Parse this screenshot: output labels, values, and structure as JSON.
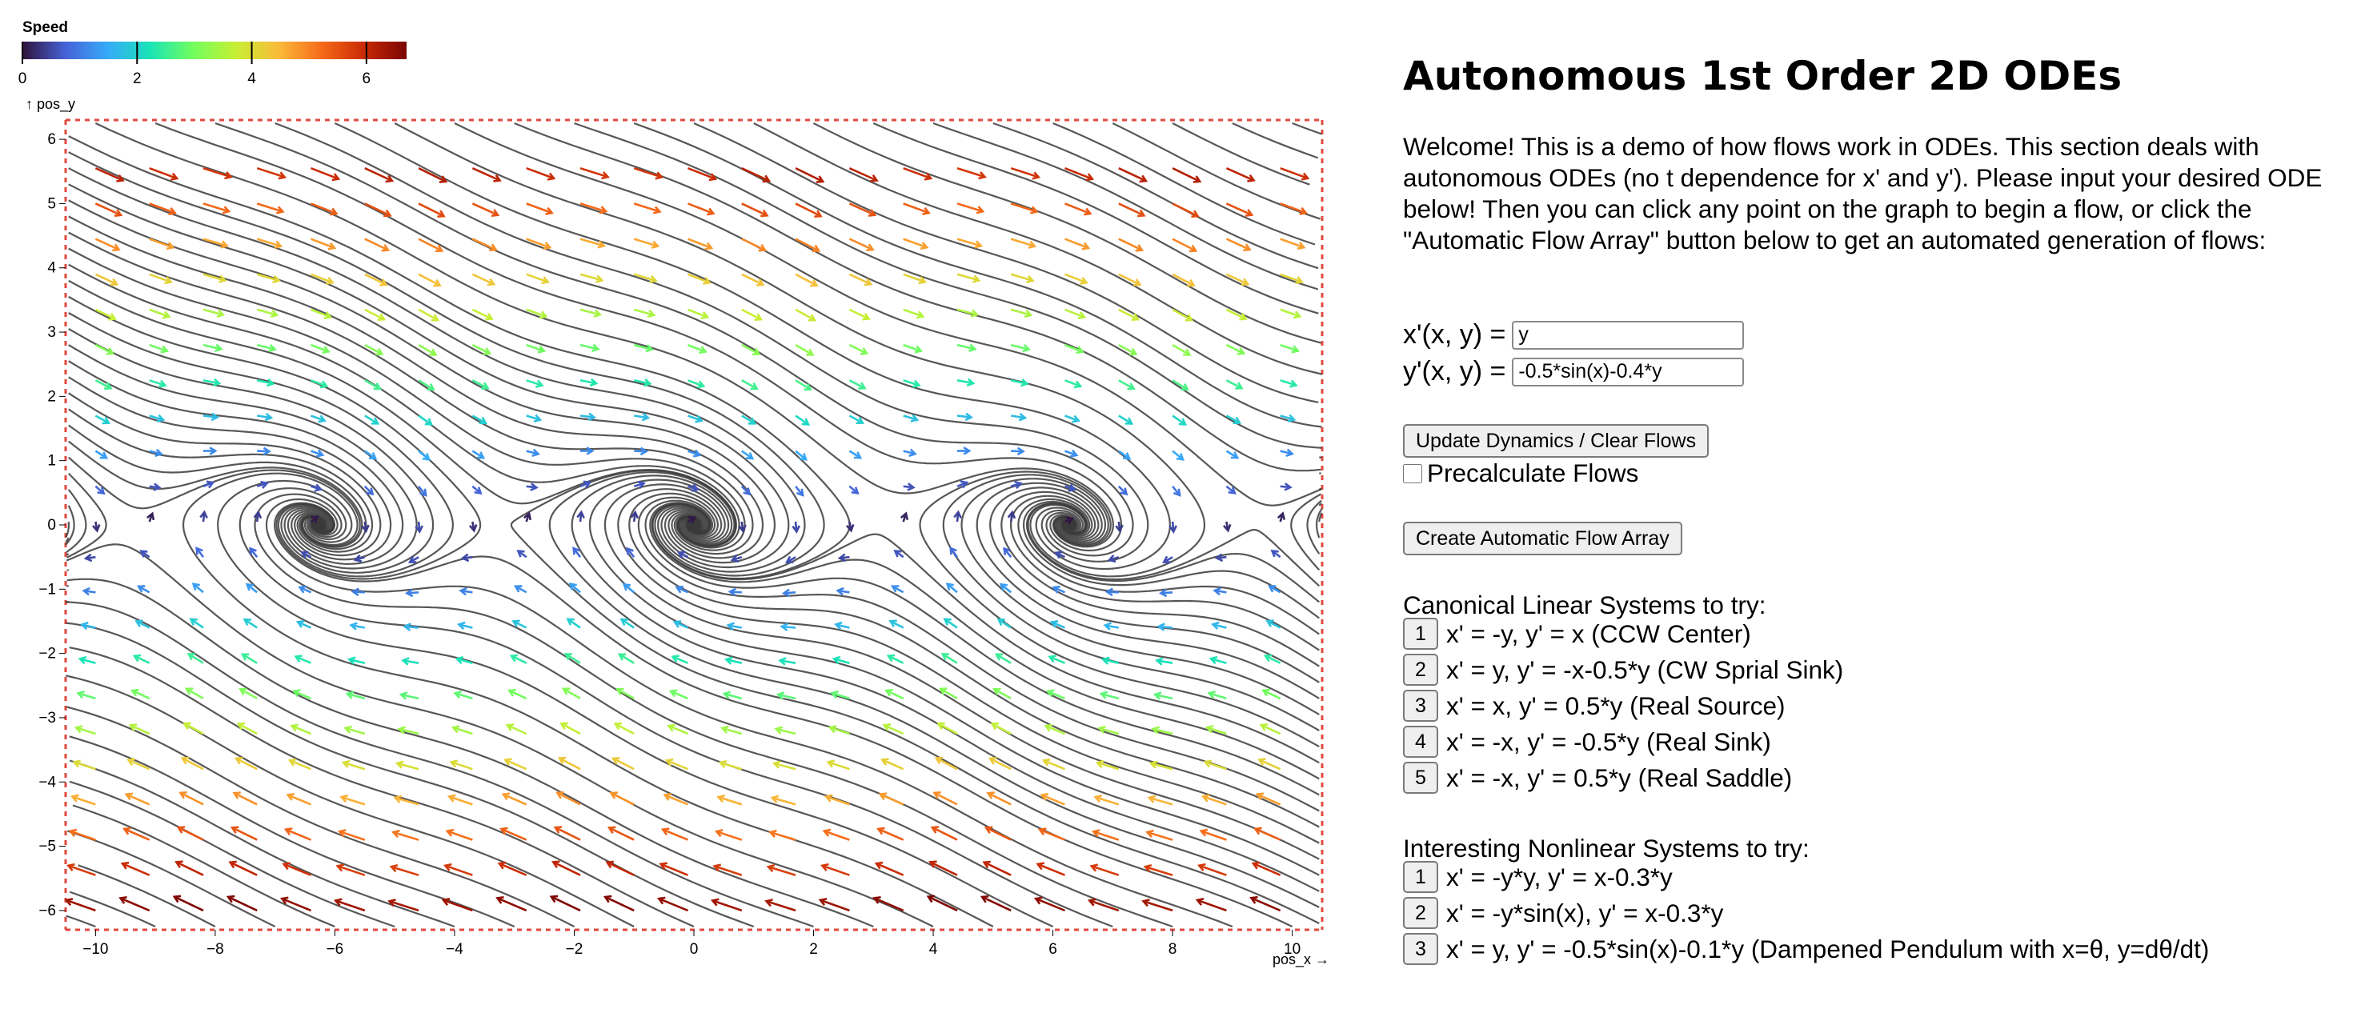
{
  "colorbar": {
    "title": "Speed",
    "ticks": [
      "0",
      "2",
      "4",
      "6"
    ],
    "stops": [
      "#30123b",
      "#4662d7",
      "#36aaf9",
      "#1ae4b6",
      "#72fe5e",
      "#c7ef34",
      "#fabb39",
      "#f66b19",
      "#ca2a04",
      "#7a0403"
    ]
  },
  "plot": {
    "y_axis_label": "↑ pos_y",
    "x_axis_label": "pos_x →",
    "x_ticks": [
      "−10",
      "−8",
      "−6",
      "−4",
      "−2",
      "0",
      "2",
      "4",
      "6",
      "8",
      "10"
    ],
    "y_ticks": [
      "6",
      "5",
      "4",
      "3",
      "2",
      "1",
      "0",
      "−1",
      "−2",
      "−3",
      "−4",
      "−5",
      "−6"
    ],
    "xlim": [
      -10.5,
      10.5
    ],
    "ylim": [
      -6.3,
      6.3
    ],
    "field": "x' = y, y' = -0.5*sin(x) - 0.4*y"
  },
  "header": {
    "title": "Autonomous 1st Order 2D ODEs"
  },
  "intro": "Welcome! This is a demo of how flows work in ODEs. This section deals with autonomous ODEs (no t dependence for x' and y'). Please input your desired ODE below! Then you can click any point on the graph to begin a flow, or click the \"Automatic Flow Array\" button below to get an automated generation of flows:",
  "inputs": {
    "x_label": "x'(x, y) =",
    "x_value": "y",
    "y_label": "y'(x, y) =",
    "y_value": "-0.5*sin(x)-0.4*y"
  },
  "controls": {
    "update_label": "Update Dynamics / Clear Flows",
    "precalc_label": "Precalculate Flows",
    "auto_flow_label": "Create Automatic Flow Array"
  },
  "linear": {
    "title": "Canonical Linear Systems to try:",
    "items": [
      {
        "num": "1",
        "text": "x' = -y, y' = x (CCW Center)"
      },
      {
        "num": "2",
        "text": "x' = y, y' = -x-0.5*y (CW Sprial Sink)"
      },
      {
        "num": "3",
        "text": "x' = x, y' = 0.5*y (Real Source)"
      },
      {
        "num": "4",
        "text": "x' = -x, y' = -0.5*y (Real Sink)"
      },
      {
        "num": "5",
        "text": "x' = -x, y' = 0.5*y (Real Saddle)"
      }
    ]
  },
  "nonlinear": {
    "title": "Interesting Nonlinear Systems to try:",
    "items": [
      {
        "num": "1",
        "text": "x' = -y*y, y' = x-0.3*y"
      },
      {
        "num": "2",
        "text": "x' = -y*sin(x), y' = x-0.3*y"
      },
      {
        "num": "3",
        "text": "x' = y, y' = -0.5*sin(x)-0.1*y (Dampened Pendulum with x=θ, y=dθ/dt)"
      }
    ]
  }
}
